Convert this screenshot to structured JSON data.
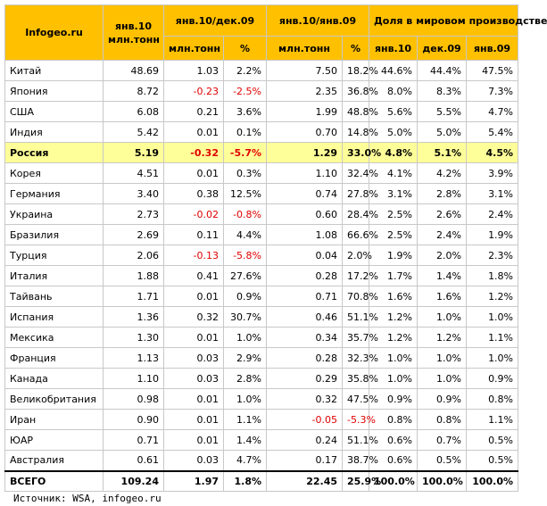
{
  "header": {
    "site": "Infogeo.ru",
    "col1": [
      "янв.10",
      "млн.тонн"
    ],
    "groups": [
      "янв.10/дек.09",
      "янв.10/янв.09",
      "Доля в мировом производстве"
    ],
    "subheaders": [
      "млн.тонн",
      "%",
      "млн.тонн",
      "%",
      "янв.10",
      "дек.09",
      "янв.09"
    ]
  },
  "table": {
    "rows": [
      [
        "Китай",
        "48.69",
        "1.03",
        "2.2%",
        "7.50",
        "18.2%",
        "44.6%",
        "44.4%",
        "47.5%"
      ],
      [
        "Япония",
        "8.72",
        "-0.23",
        "-2.5%",
        "2.35",
        "36.8%",
        "8.0%",
        "8.3%",
        "7.3%"
      ],
      [
        "США",
        "6.08",
        "0.21",
        "3.6%",
        "1.99",
        "48.8%",
        "5.6%",
        "5.5%",
        "4.7%"
      ],
      [
        "Индия",
        "5.42",
        "0.01",
        "0.1%",
        "0.70",
        "14.8%",
        "5.0%",
        "5.0%",
        "5.4%"
      ],
      [
        "Россия",
        "5.19",
        "-0.32",
        "-5.7%",
        "1.29",
        "33.0%",
        "4.8%",
        "5.1%",
        "4.5%"
      ],
      [
        "Корея",
        "4.51",
        "0.01",
        "0.3%",
        "1.10",
        "32.4%",
        "4.1%",
        "4.2%",
        "3.9%"
      ],
      [
        "Германия",
        "3.40",
        "0.38",
        "12.5%",
        "0.74",
        "27.8%",
        "3.1%",
        "2.8%",
        "3.1%"
      ],
      [
        "Украина",
        "2.73",
        "-0.02",
        "-0.8%",
        "0.60",
        "28.4%",
        "2.5%",
        "2.6%",
        "2.4%"
      ],
      [
        "Бразилия",
        "2.69",
        "0.11",
        "4.4%",
        "1.08",
        "66.6%",
        "2.5%",
        "2.4%",
        "1.9%"
      ],
      [
        "Турция",
        "2.06",
        "-0.13",
        "-5.8%",
        "0.04",
        "2.0%",
        "1.9%",
        "2.0%",
        "2.3%"
      ],
      [
        "Италия",
        "1.88",
        "0.41",
        "27.6%",
        "0.28",
        "17.2%",
        "1.7%",
        "1.4%",
        "1.8%"
      ],
      [
        "Тайвань",
        "1.71",
        "0.01",
        "0.9%",
        "0.71",
        "70.8%",
        "1.6%",
        "1.6%",
        "1.2%"
      ],
      [
        "Испания",
        "1.36",
        "0.32",
        "30.7%",
        "0.46",
        "51.1%",
        "1.2%",
        "1.0%",
        "1.0%"
      ],
      [
        "Мексика",
        "1.30",
        "0.01",
        "1.0%",
        "0.34",
        "35.7%",
        "1.2%",
        "1.2%",
        "1.1%"
      ],
      [
        "Франция",
        "1.13",
        "0.03",
        "2.9%",
        "0.28",
        "32.3%",
        "1.0%",
        "1.0%",
        "1.0%"
      ],
      [
        "Канада",
        "1.10",
        "0.03",
        "2.8%",
        "0.29",
        "35.8%",
        "1.0%",
        "1.0%",
        "0.9%"
      ],
      [
        "Великобритания",
        "0.98",
        "0.01",
        "1.0%",
        "0.32",
        "47.5%",
        "0.9%",
        "0.9%",
        "0.8%"
      ],
      [
        "Иран",
        "0.90",
        "0.01",
        "1.1%",
        "-0.05",
        "-5.3%",
        "0.8%",
        "0.8%",
        "1.1%"
      ],
      [
        "ЮАР",
        "0.71",
        "0.01",
        "1.4%",
        "0.24",
        "51.1%",
        "0.6%",
        "0.7%",
        "0.5%"
      ],
      [
        "Австралия",
        "0.61",
        "0.03",
        "4.7%",
        "0.17",
        "38.7%",
        "0.6%",
        "0.5%",
        "0.5%"
      ]
    ],
    "total": [
      "ВСЕГО",
      "109.24",
      "1.97",
      "1.8%",
      "22.45",
      "25.9%",
      "100.0%",
      "100.0%",
      "100.0%"
    ]
  },
  "source": "Источник: WSA, infogeo.ru"
}
